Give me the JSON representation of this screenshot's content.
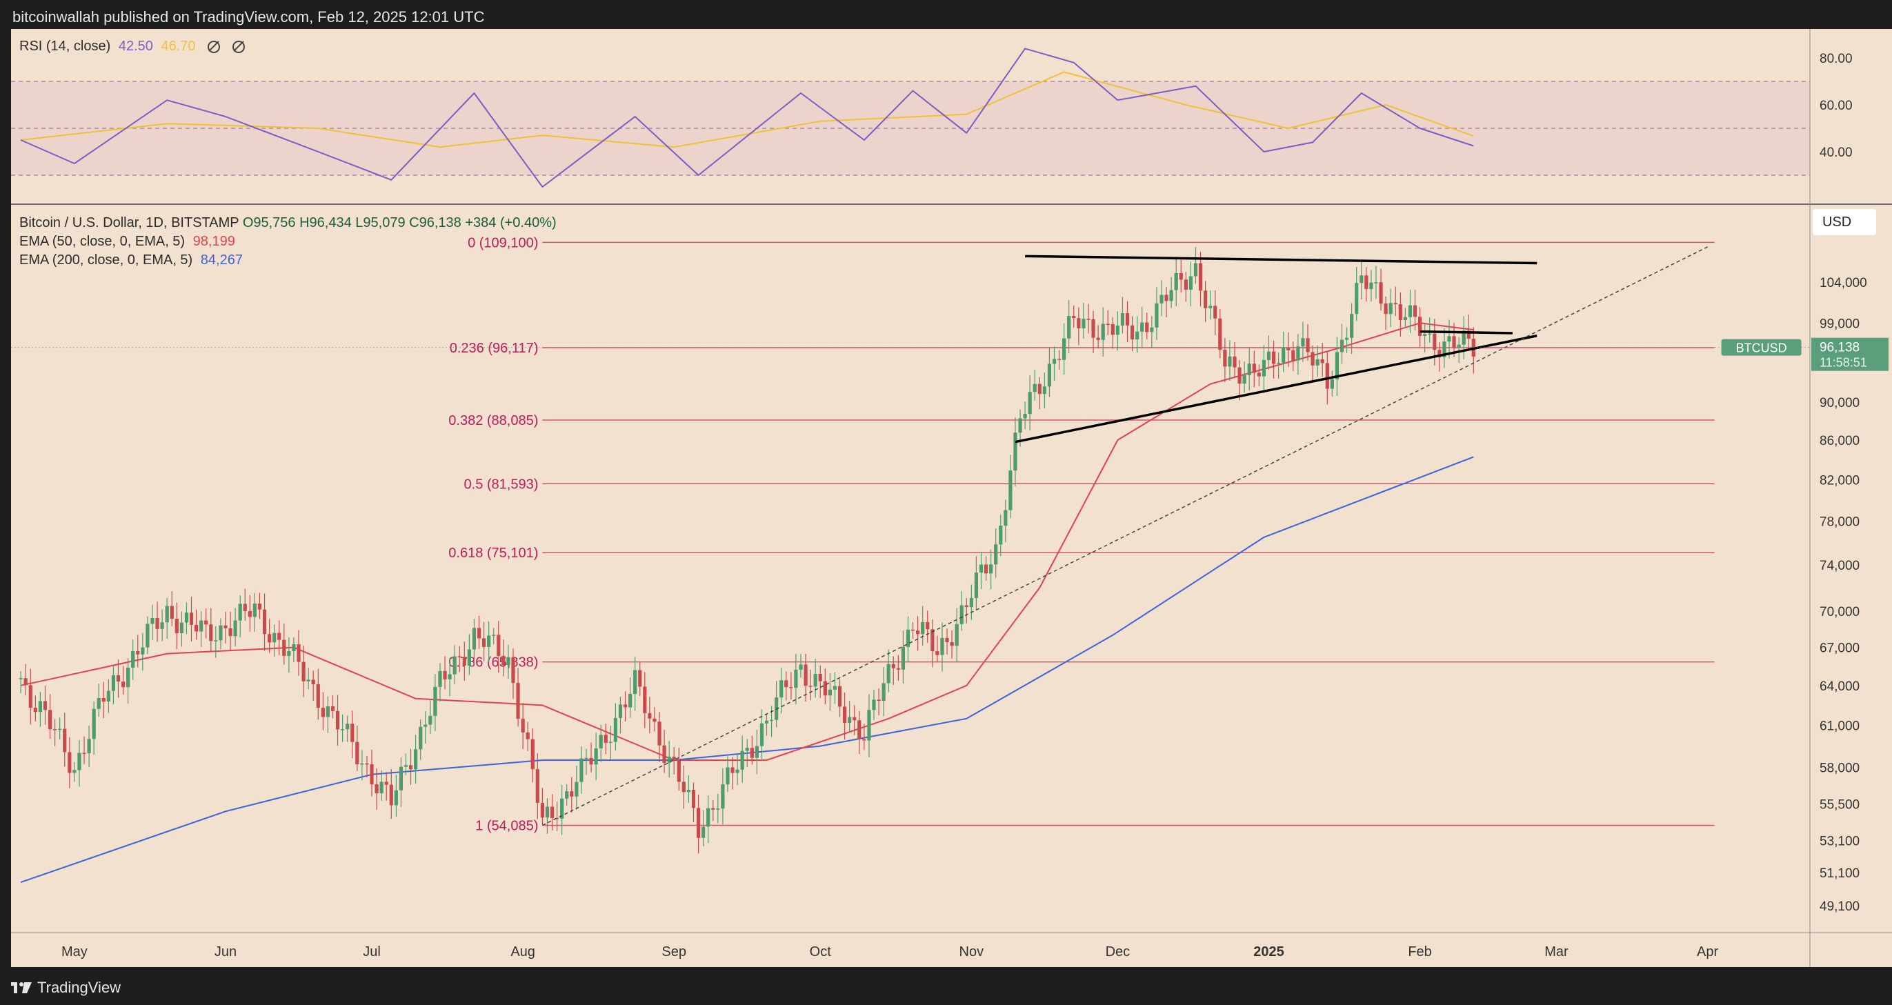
{
  "header": {
    "text": "bitcoinwallah published on TradingView.com, Feb 12, 2025 12:01 UTC"
  },
  "footer": {
    "brand": "TradingView",
    "logo_icon": "tradingview-logo-icon"
  },
  "colors": {
    "background": "#f3e1cf",
    "up": "#4e9b6b",
    "down": "#c84a4a",
    "ema50": "#e3414d",
    "ema200": "#3c62e0",
    "rsi": "#7b5cc6",
    "rsi_ma": "#efc235",
    "fib": "#d9506a",
    "price_tag": "#5a9e7b",
    "text_red": "#c2185b"
  },
  "rsi_panel": {
    "title": "RSI (14, close)",
    "value1": "42.50",
    "value2": "46.70",
    "yticks": [
      "80.00",
      "60.00",
      "40.00"
    ],
    "levels": [
      70,
      50,
      30
    ]
  },
  "main_legend": {
    "symbol": "Bitcoin / U.S. Dollar, 1D, BITSTAMP",
    "o": "O95,756",
    "h": "H96,434",
    "l": "L95,079",
    "c": "C96,138",
    "chg": "+384 (+0.40%)",
    "ema50_label": "EMA (50, close, 0, EMA, 5)",
    "ema50_value": "98,199",
    "ema200_label": "EMA (200, close, 0, EMA, 5)",
    "ema200_value": "84,267"
  },
  "currency": "USD",
  "price_tag": {
    "symbol": "BTCUSD",
    "price": "96,138",
    "timer": "11:58:51"
  },
  "chart_data": {
    "type": "line",
    "title": "Bitcoin / U.S. Dollar, 1D, BITSTAMP",
    "y_scale": "log",
    "yticks": [
      49100,
      51100,
      53100,
      55500,
      58000,
      61000,
      64000,
      67000,
      70000,
      74000,
      78000,
      82000,
      86000,
      90000,
      99000,
      104000
    ],
    "ytick_labels": [
      "49,100",
      "51,100",
      "53,100",
      "55,500",
      "58,000",
      "61,000",
      "64,000",
      "67,000",
      "70,000",
      "74,000",
      "78,000",
      "82,000",
      "86,000",
      "90,000",
      "99,000",
      "104,000"
    ],
    "x_labels": [
      "May",
      "Jun",
      "Jul",
      "Aug",
      "Sep",
      "Oct",
      "Nov",
      "Dec",
      "2025",
      "Feb",
      "Mar",
      "Apr"
    ],
    "x_label_dates": [
      "2024-05-01",
      "2024-06-01",
      "2024-07-01",
      "2024-08-01",
      "2024-09-01",
      "2024-10-01",
      "2024-11-01",
      "2024-12-01",
      "2025-01-01",
      "2025-02-01",
      "2025-03-01",
      "2025-04-01"
    ],
    "price_series": {
      "name": "BTCUSD",
      "dates": [
        "2024-04-20",
        "2024-05-01",
        "2024-05-07",
        "2024-05-20",
        "2024-05-28",
        "2024-06-07",
        "2024-06-14",
        "2024-06-24",
        "2024-07-05",
        "2024-07-15",
        "2024-07-22",
        "2024-07-29",
        "2024-08-05",
        "2024-08-15",
        "2024-08-24",
        "2024-09-06",
        "2024-09-15",
        "2024-09-27",
        "2024-10-10",
        "2024-10-20",
        "2024-10-25",
        "2024-10-31",
        "2024-11-06",
        "2024-11-11",
        "2024-11-13",
        "2024-11-22",
        "2024-12-05",
        "2024-12-17",
        "2024-12-23",
        "2024-12-31",
        "2025-01-07",
        "2025-01-13",
        "2025-01-20",
        "2025-01-27",
        "2025-02-03",
        "2025-02-12"
      ],
      "close": [
        64500,
        58000,
        63000,
        70000,
        68000,
        70000,
        66500,
        61000,
        55500,
        64000,
        68000,
        66000,
        54085,
        58500,
        64000,
        54000,
        58500,
        65500,
        60500,
        69000,
        66500,
        70500,
        75500,
        88000,
        90000,
        99000,
        98000,
        106000,
        94000,
        93500,
        97000,
        92000,
        104000,
        101000,
        97000,
        96138
      ]
    },
    "ema50_series": {
      "name": "EMA (50, close, 0, EMA, 5)",
      "dates": [
        "2024-04-20",
        "2024-05-20",
        "2024-06-15",
        "2024-07-10",
        "2024-08-05",
        "2024-09-01",
        "2024-09-20",
        "2024-10-15",
        "2024-10-31",
        "2024-11-15",
        "2024-12-01",
        "2024-12-20",
        "2025-01-15",
        "2025-02-01",
        "2025-02-12"
      ],
      "values": [
        64000,
        66500,
        67000,
        63000,
        62500,
        58500,
        58500,
        61500,
        64000,
        72000,
        86000,
        92000,
        96000,
        99000,
        98199
      ]
    },
    "ema200_series": {
      "name": "EMA (200, close, 0, EMA, 5)",
      "dates": [
        "2024-04-20",
        "2024-06-01",
        "2024-07-01",
        "2024-08-05",
        "2024-09-01",
        "2024-10-01",
        "2024-10-31",
        "2024-11-30",
        "2024-12-31",
        "2025-02-12"
      ],
      "values": [
        50500,
        55000,
        57500,
        58500,
        58500,
        59500,
        61500,
        68000,
        76500,
        84267
      ]
    },
    "fib_levels": [
      {
        "label": "0 (109,100)",
        "value": 109100
      },
      {
        "label": "0.236 (96,117)",
        "value": 96117
      },
      {
        "label": "0.382 (88,085)",
        "value": 88085
      },
      {
        "label": "0.5 (81,593)",
        "value": 81593
      },
      {
        "label": "0.618 (75,101)",
        "value": 75101
      },
      {
        "label": "0.786 (65,838)",
        "value": 65838
      },
      {
        "label": "1 (54,085)",
        "value": 54085
      }
    ],
    "trendlines": [
      {
        "style": "solid",
        "from": [
          "2024-11-12",
          107300
        ],
        "to": [
          "2025-02-25",
          106400
        ]
      },
      {
        "style": "solid",
        "from": [
          "2024-11-10",
          85800
        ],
        "to": [
          "2025-02-25",
          97500
        ]
      },
      {
        "style": "solid",
        "from": [
          "2025-02-01",
          98000
        ],
        "to": [
          "2025-02-20",
          97800
        ]
      },
      {
        "style": "dashed",
        "from": [
          "2024-08-05",
          54085
        ],
        "to": [
          "2025-04-01",
          108500
        ]
      }
    ],
    "rsi_series": {
      "name": "RSI (14, close)",
      "dates": [
        "2024-04-20",
        "2024-05-01",
        "2024-05-20",
        "2024-06-01",
        "2024-06-20",
        "2024-07-05",
        "2024-07-22",
        "2024-08-05",
        "2024-08-24",
        "2024-09-06",
        "2024-09-27",
        "2024-10-10",
        "2024-10-20",
        "2024-10-31",
        "2024-11-12",
        "2024-11-22",
        "2024-12-01",
        "2024-12-17",
        "2024-12-31",
        "2025-01-10",
        "2025-01-20",
        "2025-02-01",
        "2025-02-12"
      ],
      "values": [
        45,
        35,
        62,
        55,
        40,
        28,
        65,
        25,
        55,
        30,
        65,
        45,
        66,
        48,
        84,
        78,
        62,
        68,
        40,
        44,
        65,
        50,
        42.5
      ]
    },
    "rsi_ma_series": {
      "name": "RSI MA",
      "dates": [
        "2024-04-20",
        "2024-05-20",
        "2024-06-20",
        "2024-07-15",
        "2024-08-05",
        "2024-09-01",
        "2024-10-01",
        "2024-10-31",
        "2024-11-20",
        "2024-12-15",
        "2025-01-05",
        "2025-01-25",
        "2025-02-12"
      ],
      "values": [
        45,
        52,
        50,
        42,
        47,
        42,
        53,
        56,
        74,
        60,
        50,
        60,
        46.7
      ]
    },
    "rsi_ylim": [
      20,
      90
    ],
    "grid": false
  }
}
